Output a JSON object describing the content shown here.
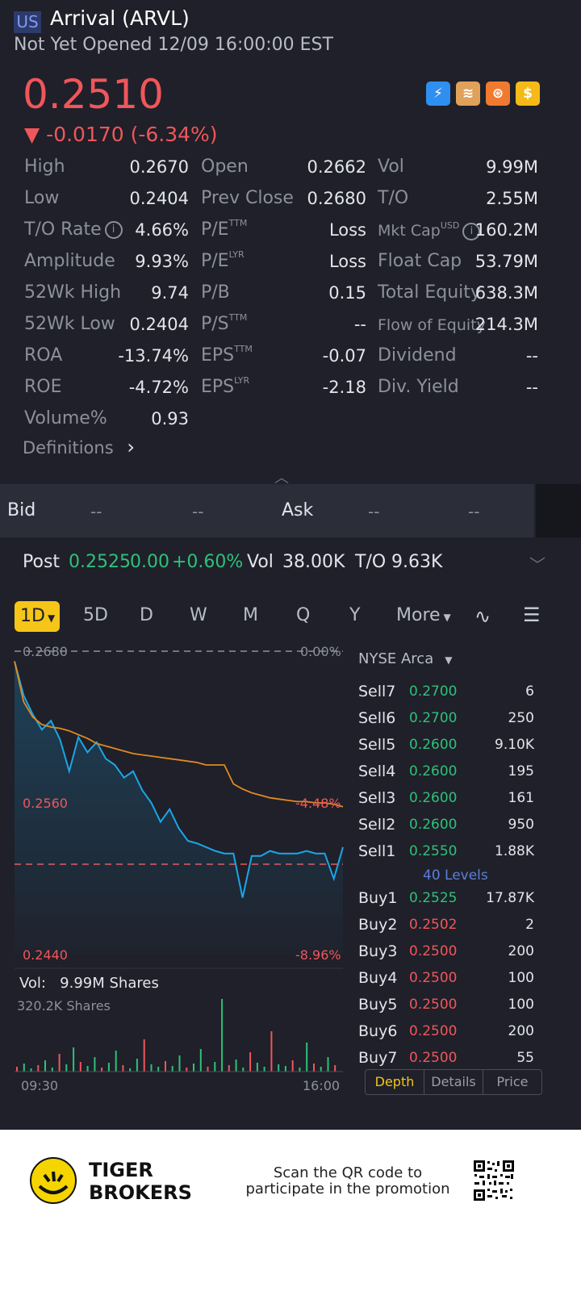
{
  "header": {
    "market": "US",
    "title": "Arrival (ARVL)",
    "status": "Not Yet Opened 12/09 16:00:00 EST",
    "price": "0.2510",
    "change": "▼ -0.0170 (-6.34%)",
    "icons": [
      "lightning-badge-icon",
      "layers-a-icon",
      "share-circle-icon",
      "dollar-icon"
    ]
  },
  "stats": {
    "col1": [
      {
        "label": "High",
        "value": "0.2670"
      },
      {
        "label": "Low",
        "value": "0.2404"
      },
      {
        "label": "T/O Rate",
        "value": "4.66%"
      },
      {
        "label": "Amplitude",
        "value": "9.93%"
      },
      {
        "label": "52Wk High",
        "value": "9.74"
      },
      {
        "label": "52Wk Low",
        "value": "0.2404"
      },
      {
        "label": "ROA",
        "value": "-13.74%"
      },
      {
        "label": "ROE",
        "value": "-4.72%"
      },
      {
        "label": "Volume%",
        "value": "0.93"
      }
    ],
    "col2": [
      {
        "label": "Open",
        "sup": "",
        "value": "0.2662"
      },
      {
        "label": "Prev Close",
        "sup": "",
        "value": "0.2680"
      },
      {
        "label": "P/E",
        "sup": "TTM",
        "value": "Loss"
      },
      {
        "label": "P/E",
        "sup": "LYR",
        "value": "Loss"
      },
      {
        "label": "P/B",
        "sup": "",
        "value": "0.15"
      },
      {
        "label": "P/S",
        "sup": "TTM",
        "value": "--"
      },
      {
        "label": "EPS",
        "sup": "TTM",
        "value": "-0.07"
      },
      {
        "label": "EPS",
        "sup": "LYR",
        "value": "-2.18"
      }
    ],
    "col3": [
      {
        "label": "Vol",
        "sup": "",
        "value": "9.99M"
      },
      {
        "label": "T/O",
        "sup": "",
        "value": "2.55M"
      },
      {
        "label": "Mkt Cap",
        "sup": "USD",
        "value": "160.2M"
      },
      {
        "label": "Float Cap",
        "sup": "",
        "value": "53.79M"
      },
      {
        "label": "Total Equity",
        "sup": "",
        "value": "638.3M"
      },
      {
        "label": "Flow of Equity",
        "sup": "",
        "value": "214.3M"
      },
      {
        "label": "Dividend",
        "sup": "",
        "value": "--"
      },
      {
        "label": "Div. Yield",
        "sup": "",
        "value": "--"
      }
    ],
    "definitions": "Definitions"
  },
  "quote": {
    "bid_label": "Bid",
    "bid_price": "--",
    "bid_size": "--",
    "ask_label": "Ask",
    "ask_price": "--",
    "ask_size": "--"
  },
  "post": {
    "label": "Post",
    "price": "0.2525",
    "change": "0.00",
    "pct": "+0.60%",
    "vol_label": "Vol",
    "vol": "38.00K",
    "to_label": "T/O",
    "to": "9.63K"
  },
  "tabs": [
    "1D",
    "5D",
    "D",
    "W",
    "M",
    "Q",
    "Y",
    "More"
  ],
  "chart": {
    "top_left": "0.2680",
    "top_right": "0.00%",
    "mid_left": "0.2560",
    "mid_right": "-4.48%",
    "bot_left": "0.2440",
    "bot_right": "-8.96%",
    "vol_label": "Vol:",
    "vol_value": "9.99M Shares",
    "vol_max": "320.2K Shares",
    "time_start": "09:30",
    "time_end": "16:00",
    "colors": {
      "price": "#1aa6e8",
      "avg": "#e08a1f",
      "up": "#2ec17a",
      "down": "#f0565a"
    }
  },
  "chart_data": {
    "type": "line",
    "title": "",
    "xlabel": "",
    "ylabel": "",
    "x_range": [
      "09:30",
      "16:00"
    ],
    "ylim": [
      0.244,
      0.268
    ],
    "prev_close": 0.268,
    "series": [
      {
        "values": [
          0.2672,
          0.2645,
          0.263,
          0.2618,
          0.2625,
          0.261,
          0.2585,
          0.2612,
          0.26,
          0.2608,
          0.2595,
          0.259,
          0.258,
          0.2585,
          0.257,
          0.256,
          0.2545,
          0.2555,
          0.254,
          0.253,
          0.2528,
          0.2525,
          0.2522,
          0.252,
          0.252,
          0.2485,
          0.2518,
          0.2518,
          0.2522,
          0.252,
          0.252,
          0.252,
          0.2522,
          0.252,
          0.252,
          0.25,
          0.2525
        ]
      },
      {
        "values": [
          0.2672,
          0.264,
          0.2628,
          0.2622,
          0.262,
          0.2619,
          0.2617,
          0.2614,
          0.2611,
          0.2607,
          0.2605,
          0.2603,
          0.2601,
          0.2599,
          0.2598,
          0.2597,
          0.2596,
          0.2595,
          0.2594,
          0.2593,
          0.2592,
          0.259,
          0.259,
          0.259,
          0.2575,
          0.2571,
          0.2568,
          0.2566,
          0.2564,
          0.2563,
          0.2562,
          0.2561,
          0.2561,
          0.256,
          0.256,
          0.2559,
          0.2557
        ]
      }
    ]
  },
  "orderbook": {
    "exchange": "NYSE Arca",
    "sells": [
      {
        "name": "Sell7",
        "price": "0.2700",
        "qty": "6"
      },
      {
        "name": "Sell6",
        "price": "0.2700",
        "qty": "250"
      },
      {
        "name": "Sell5",
        "price": "0.2600",
        "qty": "9.10K"
      },
      {
        "name": "Sell4",
        "price": "0.2600",
        "qty": "195"
      },
      {
        "name": "Sell3",
        "price": "0.2600",
        "qty": "161"
      },
      {
        "name": "Sell2",
        "price": "0.2600",
        "qty": "950"
      },
      {
        "name": "Sell1",
        "price": "0.2550",
        "qty": "1.88K"
      }
    ],
    "levels": "40 Levels",
    "buys": [
      {
        "name": "Buy1",
        "price": "0.2525",
        "qty": "17.87K",
        "color": "green"
      },
      {
        "name": "Buy2",
        "price": "0.2502",
        "qty": "2",
        "color": "red"
      },
      {
        "name": "Buy3",
        "price": "0.2500",
        "qty": "200",
        "color": "red"
      },
      {
        "name": "Buy4",
        "price": "0.2500",
        "qty": "100",
        "color": "red"
      },
      {
        "name": "Buy5",
        "price": "0.2500",
        "qty": "100",
        "color": "red"
      },
      {
        "name": "Buy6",
        "price": "0.2500",
        "qty": "200",
        "color": "red"
      },
      {
        "name": "Buy7",
        "price": "0.2500",
        "qty": "55",
        "color": "red"
      }
    ],
    "segments": [
      "Depth",
      "Details",
      "Price"
    ]
  },
  "footer": {
    "brand_line1": "TIGER",
    "brand_line2": "BROKERS",
    "promo": "Scan the QR code to participate in the promotion"
  }
}
